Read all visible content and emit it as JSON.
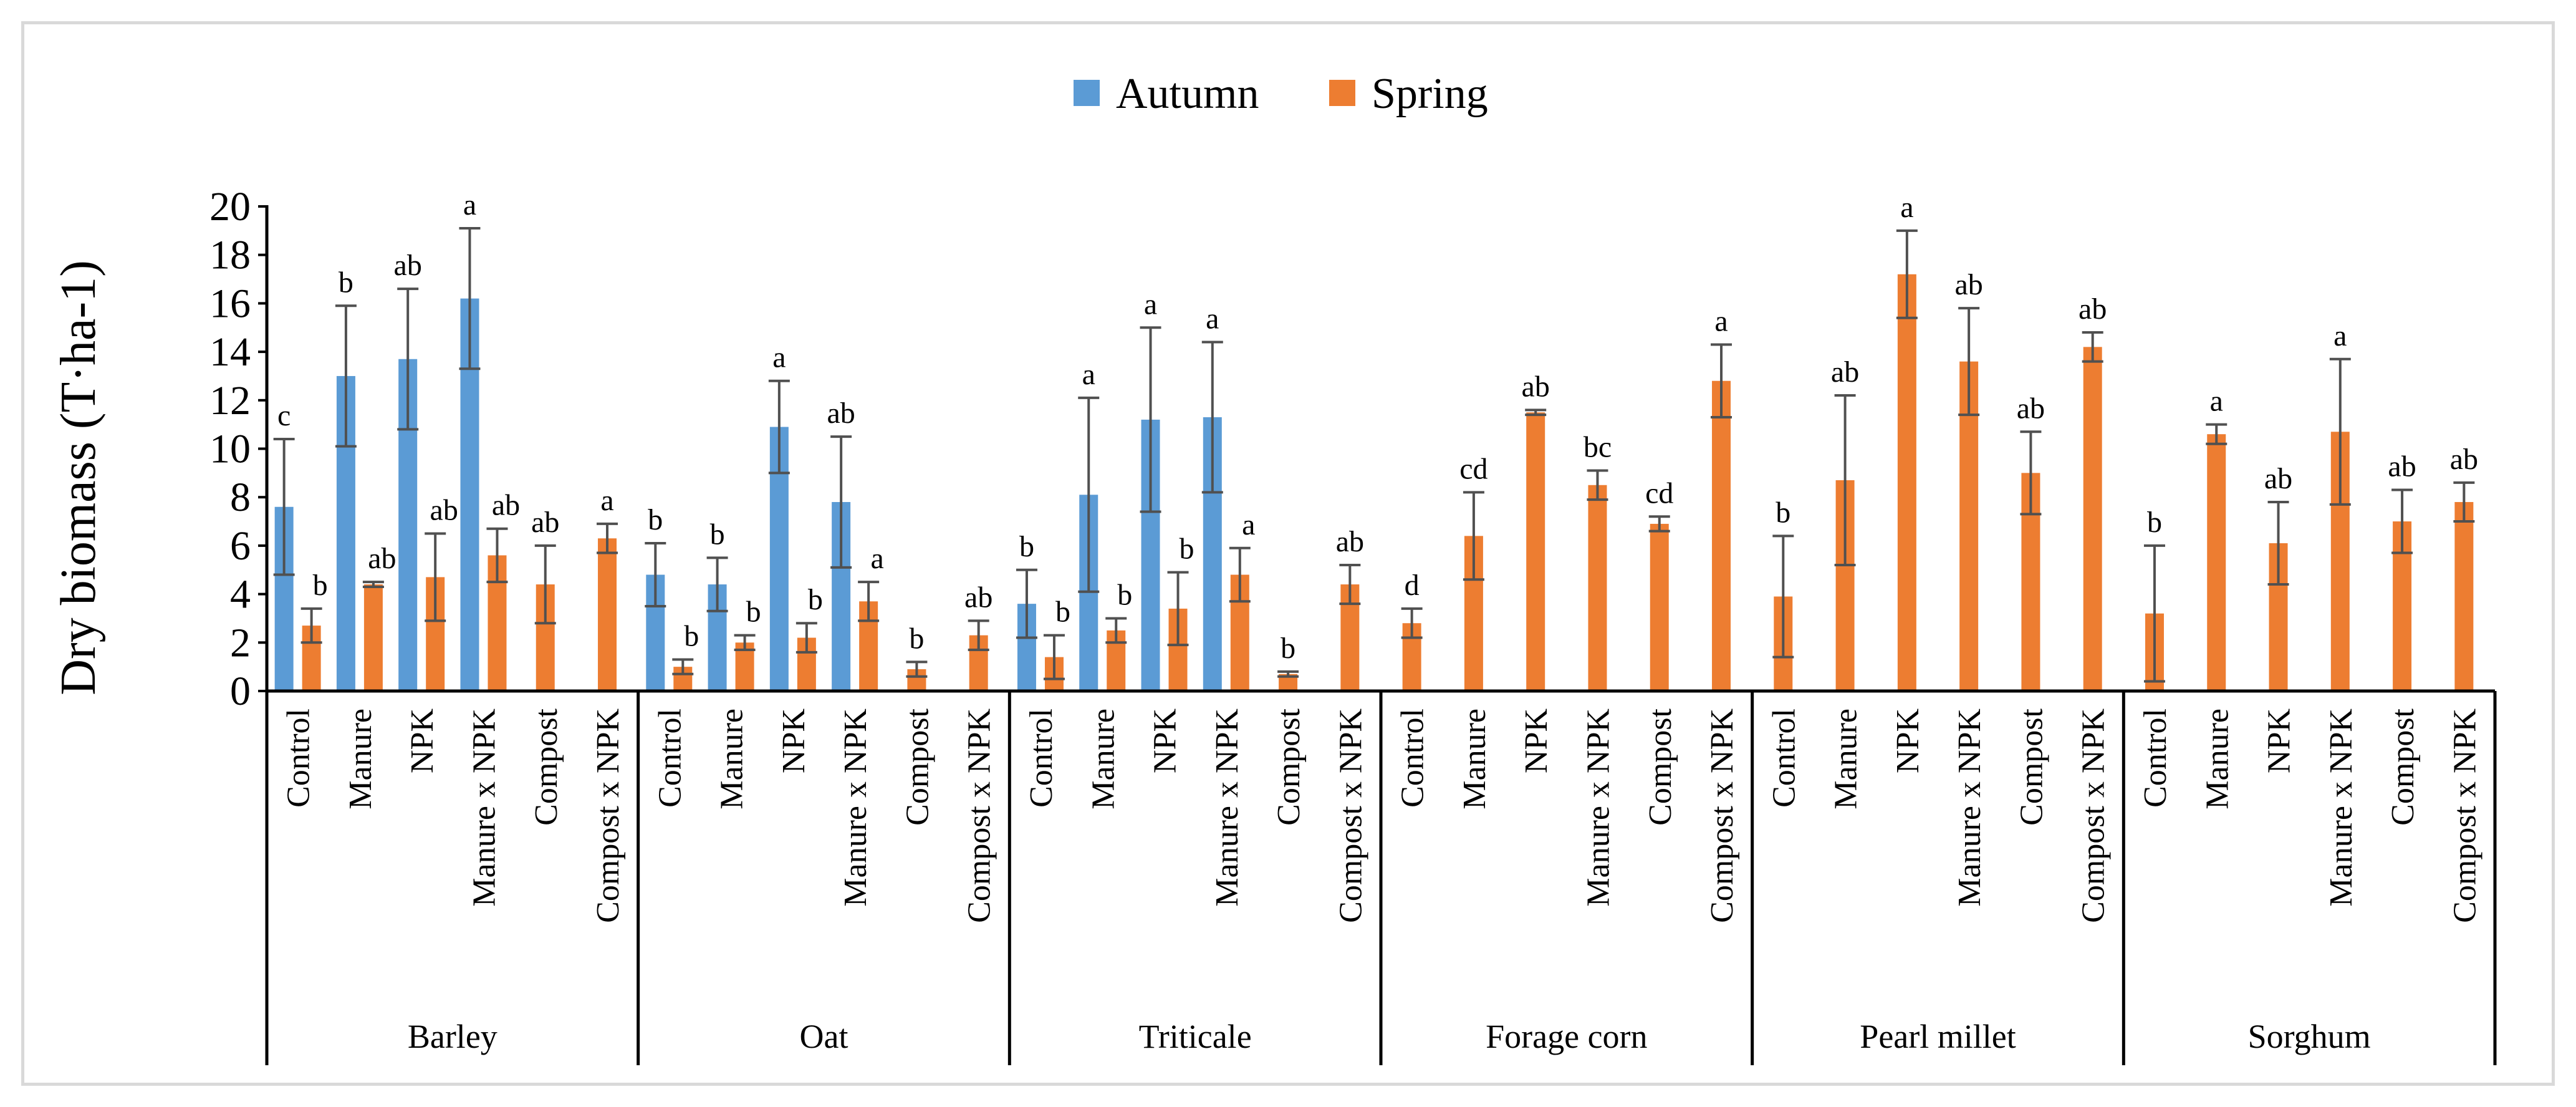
{
  "chart_data": {
    "type": "bar",
    "ylabel": "Dry biomass (T·ha-1)",
    "ylim": [
      0,
      20
    ],
    "yticks": [
      0,
      2,
      4,
      6,
      8,
      10,
      12,
      14,
      16,
      18,
      20
    ],
    "ytick_labels": [
      "0",
      "2",
      "4",
      "6",
      "8",
      "10",
      "12",
      "14",
      "16",
      "18",
      "20"
    ],
    "legend_position": "top-center",
    "series": [
      {
        "name": "Autumn",
        "color": "#5b9bd5"
      },
      {
        "name": "Spring",
        "color": "#ed7d31"
      }
    ],
    "groups": [
      {
        "label": "Barley",
        "treatments": [
          {
            "label": "Control",
            "autumn": 7.6,
            "autumn_err": 2.8,
            "autumn_letter": "c",
            "spring": 2.7,
            "spring_err": 0.7,
            "spring_letter": "b"
          },
          {
            "label": "Manure",
            "autumn": 13.0,
            "autumn_err": 2.9,
            "autumn_letter": "b",
            "spring": 4.4,
            "spring_err": 0.1,
            "spring_letter": "ab"
          },
          {
            "label": "NPK",
            "autumn": 13.7,
            "autumn_err": 2.9,
            "autumn_letter": "ab",
            "spring": 4.7,
            "spring_err": 1.8,
            "spring_letter": "ab"
          },
          {
            "label": "Manure x NPK",
            "autumn": 16.2,
            "autumn_err": 2.9,
            "autumn_letter": "a",
            "spring": 5.6,
            "spring_err": 1.1,
            "spring_letter": "ab"
          },
          {
            "label": "Compost",
            "spring": 4.4,
            "spring_err": 1.6,
            "spring_letter": "ab"
          },
          {
            "label": "Compost x NPK",
            "spring": 6.3,
            "spring_err": 0.6,
            "spring_letter": "a"
          }
        ]
      },
      {
        "label": "Oat",
        "treatments": [
          {
            "label": "Control",
            "autumn": 4.8,
            "autumn_err": 1.3,
            "autumn_letter": "b",
            "spring": 1.0,
            "spring_err": 0.3,
            "spring_letter": "b"
          },
          {
            "label": "Manure",
            "autumn": 4.4,
            "autumn_err": 1.1,
            "autumn_letter": "b",
            "spring": 2.0,
            "spring_err": 0.3,
            "spring_letter": "b"
          },
          {
            "label": "NPK",
            "autumn": 10.9,
            "autumn_err": 1.9,
            "autumn_letter": "a",
            "spring": 2.2,
            "spring_err": 0.6,
            "spring_letter": "b"
          },
          {
            "label": "Manure x NPK",
            "autumn": 7.8,
            "autumn_err": 2.7,
            "autumn_letter": "ab",
            "spring": 3.7,
            "spring_err": 0.8,
            "spring_letter": "a"
          },
          {
            "label": "Compost",
            "spring": 0.9,
            "spring_err": 0.3,
            "spring_letter": "b"
          },
          {
            "label": "Compost x NPK",
            "spring": 2.3,
            "spring_err": 0.6,
            "spring_letter": "ab"
          }
        ]
      },
      {
        "label": "Triticale",
        "treatments": [
          {
            "label": "Control",
            "autumn": 3.6,
            "autumn_err": 1.4,
            "autumn_letter": "b",
            "spring": 1.4,
            "spring_err": 0.9,
            "spring_letter": "b"
          },
          {
            "label": "Manure",
            "autumn": 8.1,
            "autumn_err": 4.0,
            "autumn_letter": "a",
            "spring": 2.5,
            "spring_err": 0.5,
            "spring_letter": "b"
          },
          {
            "label": "NPK",
            "autumn": 11.2,
            "autumn_err": 3.8,
            "autumn_letter": "a",
            "spring": 3.4,
            "spring_err": 1.5,
            "spring_letter": "b"
          },
          {
            "label": "Manure x NPK",
            "autumn": 11.3,
            "autumn_err": 3.1,
            "autumn_letter": "a",
            "spring": 4.8,
            "spring_err": 1.1,
            "spring_letter": "a"
          },
          {
            "label": "Compost",
            "spring": 0.7,
            "spring_err": 0.1,
            "spring_letter": "b"
          },
          {
            "label": "Compost x NPK",
            "spring": 4.4,
            "spring_err": 0.8,
            "spring_letter": "ab"
          }
        ]
      },
      {
        "label": "Forage corn",
        "treatments": [
          {
            "label": "Control",
            "spring": 2.8,
            "spring_err": 0.6,
            "spring_letter": "d"
          },
          {
            "label": "Manure",
            "spring": 6.4,
            "spring_err": 1.8,
            "spring_letter": "cd"
          },
          {
            "label": "NPK",
            "spring": 11.5,
            "spring_err": 0.1,
            "spring_letter": "ab"
          },
          {
            "label": "Manure x NPK",
            "spring": 8.5,
            "spring_err": 0.6,
            "spring_letter": "bc"
          },
          {
            "label": "Compost",
            "spring": 6.9,
            "spring_err": 0.3,
            "spring_letter": "cd"
          },
          {
            "label": "Compost x NPK",
            "spring": 12.8,
            "spring_err": 1.5,
            "spring_letter": "a"
          }
        ]
      },
      {
        "label": "Pearl millet",
        "treatments": [
          {
            "label": "Control",
            "spring": 3.9,
            "spring_err": 2.5,
            "spring_letter": "b"
          },
          {
            "label": "Manure",
            "spring": 8.7,
            "spring_err": 3.5,
            "spring_letter": "ab"
          },
          {
            "label": "NPK",
            "spring": 17.2,
            "spring_err": 1.8,
            "spring_letter": "a"
          },
          {
            "label": "Manure x NPK",
            "spring": 13.6,
            "spring_err": 2.2,
            "spring_letter": "ab"
          },
          {
            "label": "Compost",
            "spring": 9.0,
            "spring_err": 1.7,
            "spring_letter": "ab"
          },
          {
            "label": "Compost x NPK",
            "spring": 14.2,
            "spring_err": 0.6,
            "spring_letter": "ab"
          }
        ]
      },
      {
        "label": "Sorghum",
        "treatments": [
          {
            "label": "Control",
            "spring": 3.2,
            "spring_err": 2.8,
            "spring_letter": "b"
          },
          {
            "label": "Manure",
            "spring": 10.6,
            "spring_err": 0.4,
            "spring_letter": "a"
          },
          {
            "label": "NPK",
            "spring": 6.1,
            "spring_err": 1.7,
            "spring_letter": "ab"
          },
          {
            "label": "Manure x NPK",
            "spring": 10.7,
            "spring_err": 3.0,
            "spring_letter": "a"
          },
          {
            "label": "Compost",
            "spring": 7.0,
            "spring_err": 1.3,
            "spring_letter": "ab"
          },
          {
            "label": "Compost x NPK",
            "spring": 7.8,
            "spring_err": 0.8,
            "spring_letter": "ab"
          }
        ]
      }
    ]
  }
}
